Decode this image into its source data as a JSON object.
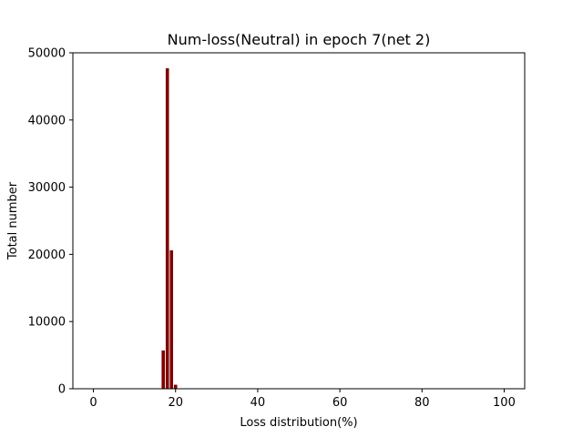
{
  "chart_data": {
    "type": "bar",
    "title": "Num-loss(Neutral) in epoch 7(net 2)",
    "xlabel": "Loss distribution(%)",
    "ylabel": "Total number",
    "xlim": [
      -5,
      105
    ],
    "ylim": [
      0,
      50000
    ],
    "xticks": [
      0,
      20,
      40,
      60,
      80,
      100
    ],
    "yticks": [
      0,
      10000,
      20000,
      30000,
      40000,
      50000
    ],
    "bar_width": 0.8,
    "bar_color": "#800000",
    "grid": false,
    "x": [
      17,
      18,
      19,
      20
    ],
    "values": [
      5700,
      47700,
      20600,
      600
    ]
  }
}
